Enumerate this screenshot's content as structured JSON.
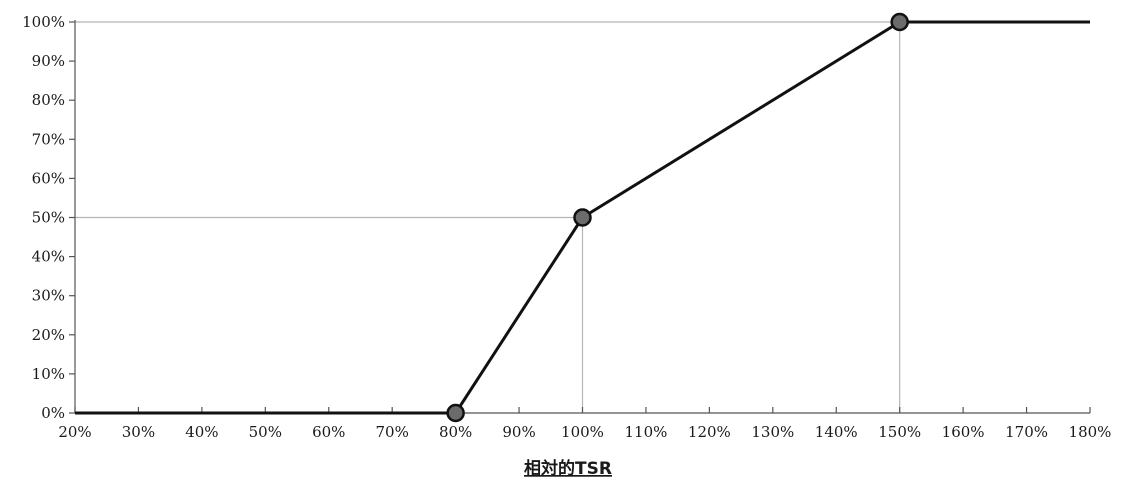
{
  "chart_data": {
    "type": "line",
    "title": "",
    "ylabel": "",
    "xlabel": "相対的TSR",
    "x_ticks": [
      "20%",
      "30%",
      "40%",
      "50%",
      "60%",
      "70%",
      "80%",
      "90%",
      "100%",
      "110%",
      "120%",
      "130%",
      "140%",
      "150%",
      "160%",
      "170%",
      "180%"
    ],
    "y_ticks": [
      "0%",
      "10%",
      "20%",
      "30%",
      "40%",
      "50%",
      "60%",
      "70%",
      "80%",
      "90%",
      "100%"
    ],
    "xlim": [
      20,
      180
    ],
    "ylim": [
      0,
      100
    ],
    "series": [
      {
        "x": [
          20,
          80,
          100,
          150,
          180
        ],
        "y": [
          0,
          0,
          50,
          100,
          100
        ]
      }
    ],
    "markers": [
      {
        "x": 80,
        "y": 0
      },
      {
        "x": 100,
        "y": 50
      },
      {
        "x": 150,
        "y": 100
      }
    ],
    "reference_lines": [
      {
        "x": 100,
        "y": 50
      },
      {
        "x": 150,
        "y": 100
      }
    ],
    "colors": {
      "line": "#111111",
      "marker_fill": "#6b6b6b",
      "guide": "#b5b5b5",
      "axis": "#555555"
    }
  }
}
